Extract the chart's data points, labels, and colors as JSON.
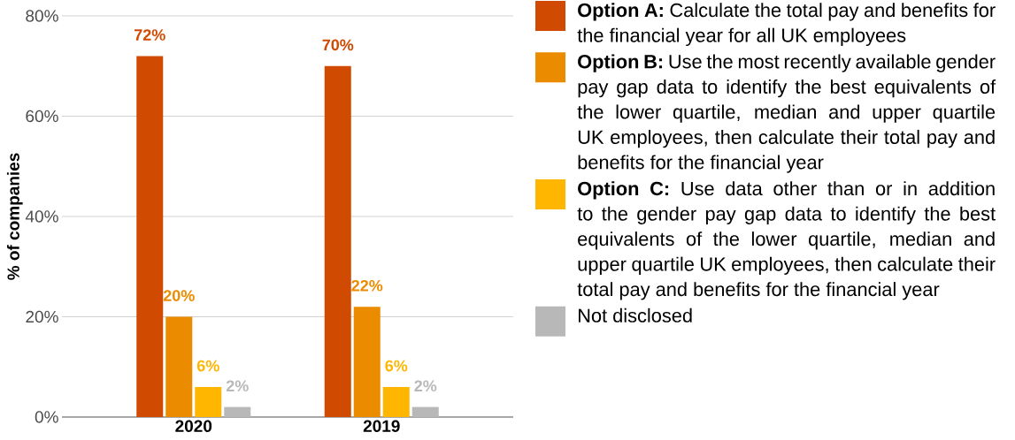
{
  "chart_data": {
    "type": "bar",
    "ylabel": "% of companies",
    "categories": [
      "2020",
      "2019"
    ],
    "series": [
      {
        "name": "**Option A:** Calculate the total pay and benefits for the financial year for all UK employees",
        "color": "#d04a02",
        "values": [
          72,
          70
        ],
        "value_labels": [
          "72%",
          "70%"
        ]
      },
      {
        "name": "**Option B:** Use the most recently available gender pay gap data to identify the best equivalents of the lower quartile, median and upper quartile UK employees, then calculate their total pay and benefits for the financial year",
        "color": "#eb8c00",
        "values": [
          20,
          22
        ],
        "value_labels": [
          "20%",
          "22%"
        ]
      },
      {
        "name": "**Option C:** Use data other than or in addition to the gender pay gap data to identify the best equivalents of the lower quartile, median and upper quartile UK employees, then calculate their total pay and benefits for the financial year",
        "color": "#ffb600",
        "values": [
          6,
          6
        ],
        "value_labels": [
          "6%",
          "6%"
        ]
      },
      {
        "name": "Not disclosed",
        "color": "#b8b8b8",
        "values": [
          2,
          2
        ],
        "value_labels": [
          "2%",
          "2%"
        ]
      }
    ],
    "ylim": [
      0,
      80
    ],
    "yticks": [
      {
        "value": 0,
        "label": "0%"
      },
      {
        "value": 20,
        "label": "20%"
      },
      {
        "value": 40,
        "label": "40%"
      },
      {
        "value": 60,
        "label": "60%"
      },
      {
        "value": 80,
        "label": "80%"
      }
    ],
    "grid": "y",
    "legend": "right"
  }
}
